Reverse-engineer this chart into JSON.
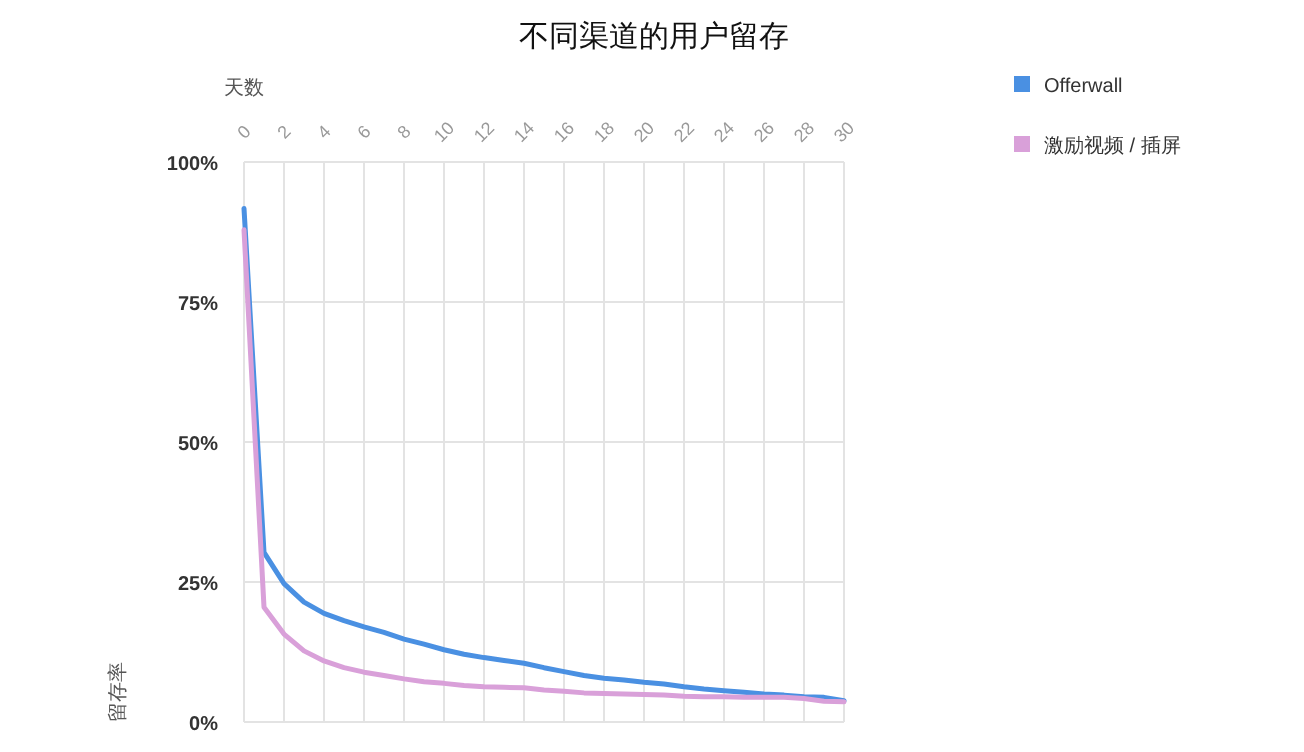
{
  "chart_data": {
    "type": "line",
    "title": "不同渠道的用户留存",
    "xlabel": "天数",
    "ylabel": "留存率",
    "x": [
      0,
      1,
      2,
      3,
      4,
      5,
      6,
      7,
      8,
      9,
      10,
      11,
      12,
      13,
      14,
      15,
      16,
      17,
      18,
      19,
      20,
      21,
      22,
      23,
      24,
      25,
      26,
      27,
      28,
      29,
      30
    ],
    "series": [
      {
        "name": "Offerwall",
        "color": "#4a90e2",
        "values": [
          91.7,
          30.3,
          24.7,
          21.4,
          19.4,
          18.1,
          17.0,
          16.0,
          14.8,
          13.9,
          12.9,
          12.1,
          11.5,
          11.0,
          10.5,
          9.7,
          9.0,
          8.3,
          7.8,
          7.5,
          7.1,
          6.8,
          6.3,
          5.9,
          5.6,
          5.3,
          5.0,
          4.8,
          4.5,
          4.4,
          3.8
        ]
      },
      {
        "name": "激励视频 / 插屏",
        "color": "#d9a0d9",
        "values": [
          87.9,
          20.5,
          15.7,
          12.7,
          10.9,
          9.7,
          8.9,
          8.3,
          7.7,
          7.2,
          6.9,
          6.5,
          6.3,
          6.2,
          6.1,
          5.7,
          5.5,
          5.2,
          5.1,
          5.0,
          4.9,
          4.8,
          4.6,
          4.5,
          4.5,
          4.4,
          4.4,
          4.4,
          4.2,
          3.7,
          3.6
        ]
      }
    ],
    "xlim": [
      0,
      30
    ],
    "xticks": [
      0,
      2,
      4,
      6,
      8,
      10,
      12,
      14,
      16,
      18,
      20,
      22,
      24,
      26,
      28,
      30
    ],
    "ylim": [
      0,
      100
    ],
    "yticks": [
      {
        "value": 0,
        "label": "0%"
      },
      {
        "value": 25,
        "label": "25%"
      },
      {
        "value": 50,
        "label": "50%"
      },
      {
        "value": 75,
        "label": "75%"
      },
      {
        "value": 100,
        "label": "100%"
      }
    ],
    "grid": true,
    "legend": "top right",
    "marker": "none",
    "line_style": "solid"
  }
}
